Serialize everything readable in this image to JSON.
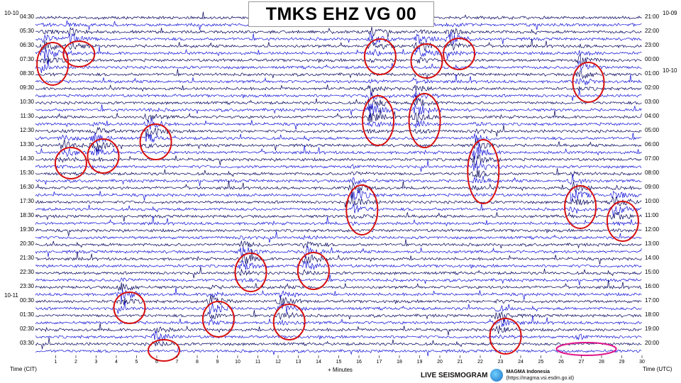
{
  "chart_data": {
    "type": "seismogram",
    "title": "TMKS EHZ VG 00",
    "xlabel": "+ Minutes",
    "left_axis_label": "Time (CIT)",
    "right_axis_label": "Time (UTC)",
    "x_ticks": [
      "1",
      "2",
      "3",
      "4",
      "5",
      "6",
      "7",
      "8",
      "9",
      "10",
      "11",
      "12",
      "13",
      "14",
      "15",
      "16",
      "17",
      "18",
      "19",
      "20",
      "21",
      "22",
      "23",
      "24",
      "25",
      "26",
      "27",
      "28",
      "29",
      "30"
    ],
    "left_times": [
      "04:30",
      "05:30",
      "06:30",
      "07:30",
      "08:30",
      "09:30",
      "10:30",
      "11:30",
      "12:30",
      "13:30",
      "14:30",
      "15:30",
      "16:30",
      "17:30",
      "18:30",
      "19:30",
      "20:30",
      "21:30",
      "22:30",
      "23:30",
      "00:30",
      "01:30",
      "02:30",
      "03:30"
    ],
    "right_times": [
      "21:00",
      "22:00",
      "23:00",
      "00:00",
      "01:00",
      "02:00",
      "03:00",
      "04:00",
      "05:00",
      "06:00",
      "07:00",
      "08:00",
      "09:00",
      "10:00",
      "11:00",
      "12:00",
      "13:00",
      "14:00",
      "15:00",
      "16:00",
      "17:00",
      "18:00",
      "19:00",
      "20:00"
    ],
    "left_date_top": "10-10",
    "left_date_mid": "10-11",
    "right_date_top": "10-09",
    "right_date_second": "10-10",
    "colors": [
      "#00005a",
      "#1010d8"
    ],
    "events": [
      {
        "minute": 0.4,
        "hour_index": 3.0,
        "span_hours": 3.0,
        "amp": 1.0
      },
      {
        "minute": 1.7,
        "hour_index": 2.3,
        "span_hours": 1.8,
        "amp": 0.9
      },
      {
        "minute": 1.3,
        "hour_index": 10.0,
        "span_hours": 2.2,
        "amp": 0.9
      },
      {
        "minute": 2.9,
        "hour_index": 9.5,
        "span_hours": 2.4,
        "amp": 0.95
      },
      {
        "minute": 5.5,
        "hour_index": 8.5,
        "span_hours": 2.5,
        "amp": 1.0
      },
      {
        "minute": 4.2,
        "hour_index": 20.2,
        "span_hours": 2.2,
        "amp": 0.9
      },
      {
        "minute": 5.9,
        "hour_index": 23.2,
        "span_hours": 1.5,
        "amp": 0.85
      },
      {
        "minute": 8.6,
        "hour_index": 21.0,
        "span_hours": 2.5,
        "amp": 0.9
      },
      {
        "minute": 10.2,
        "hour_index": 17.7,
        "span_hours": 2.7,
        "amp": 1.0
      },
      {
        "minute": 12.1,
        "hour_index": 21.2,
        "span_hours": 2.5,
        "amp": 0.95
      },
      {
        "minute": 13.3,
        "hour_index": 17.6,
        "span_hours": 2.6,
        "amp": 1.0
      },
      {
        "minute": 15.7,
        "hour_index": 13.3,
        "span_hours": 3.5,
        "amp": 0.95
      },
      {
        "minute": 16.6,
        "hour_index": 2.5,
        "span_hours": 2.5,
        "amp": 0.95
      },
      {
        "minute": 16.5,
        "hour_index": 7.0,
        "span_hours": 3.5,
        "amp": 1.0
      },
      {
        "minute": 18.9,
        "hour_index": 2.8,
        "span_hours": 2.4,
        "amp": 0.9
      },
      {
        "minute": 18.8,
        "hour_index": 7.0,
        "span_hours": 3.8,
        "amp": 0.95
      },
      {
        "minute": 20.5,
        "hour_index": 2.3,
        "span_hours": 2.2,
        "amp": 0.85
      },
      {
        "minute": 21.7,
        "hour_index": 10.6,
        "span_hours": 4.5,
        "amp": 0.95
      },
      {
        "minute": 22.8,
        "hour_index": 22.2,
        "span_hours": 2.5,
        "amp": 0.9
      },
      {
        "minute": 26.9,
        "hour_index": 4.3,
        "span_hours": 2.8,
        "amp": 0.9
      },
      {
        "minute": 26.5,
        "hour_index": 13.1,
        "span_hours": 3.0,
        "amp": 0.95
      },
      {
        "minute": 28.6,
        "hour_index": 14.1,
        "span_hours": 2.8,
        "amp": 0.95
      },
      {
        "minute": 26.8,
        "hour_index": 23.1,
        "span_hours": 0.4,
        "amp": 0.7
      }
    ]
  },
  "footer": {
    "live_label": "LIVE SEISMOGRAM",
    "org_name": "MAGMA Indonesia",
    "org_url": "(https://magma.vsi.esdm.go.id)"
  }
}
